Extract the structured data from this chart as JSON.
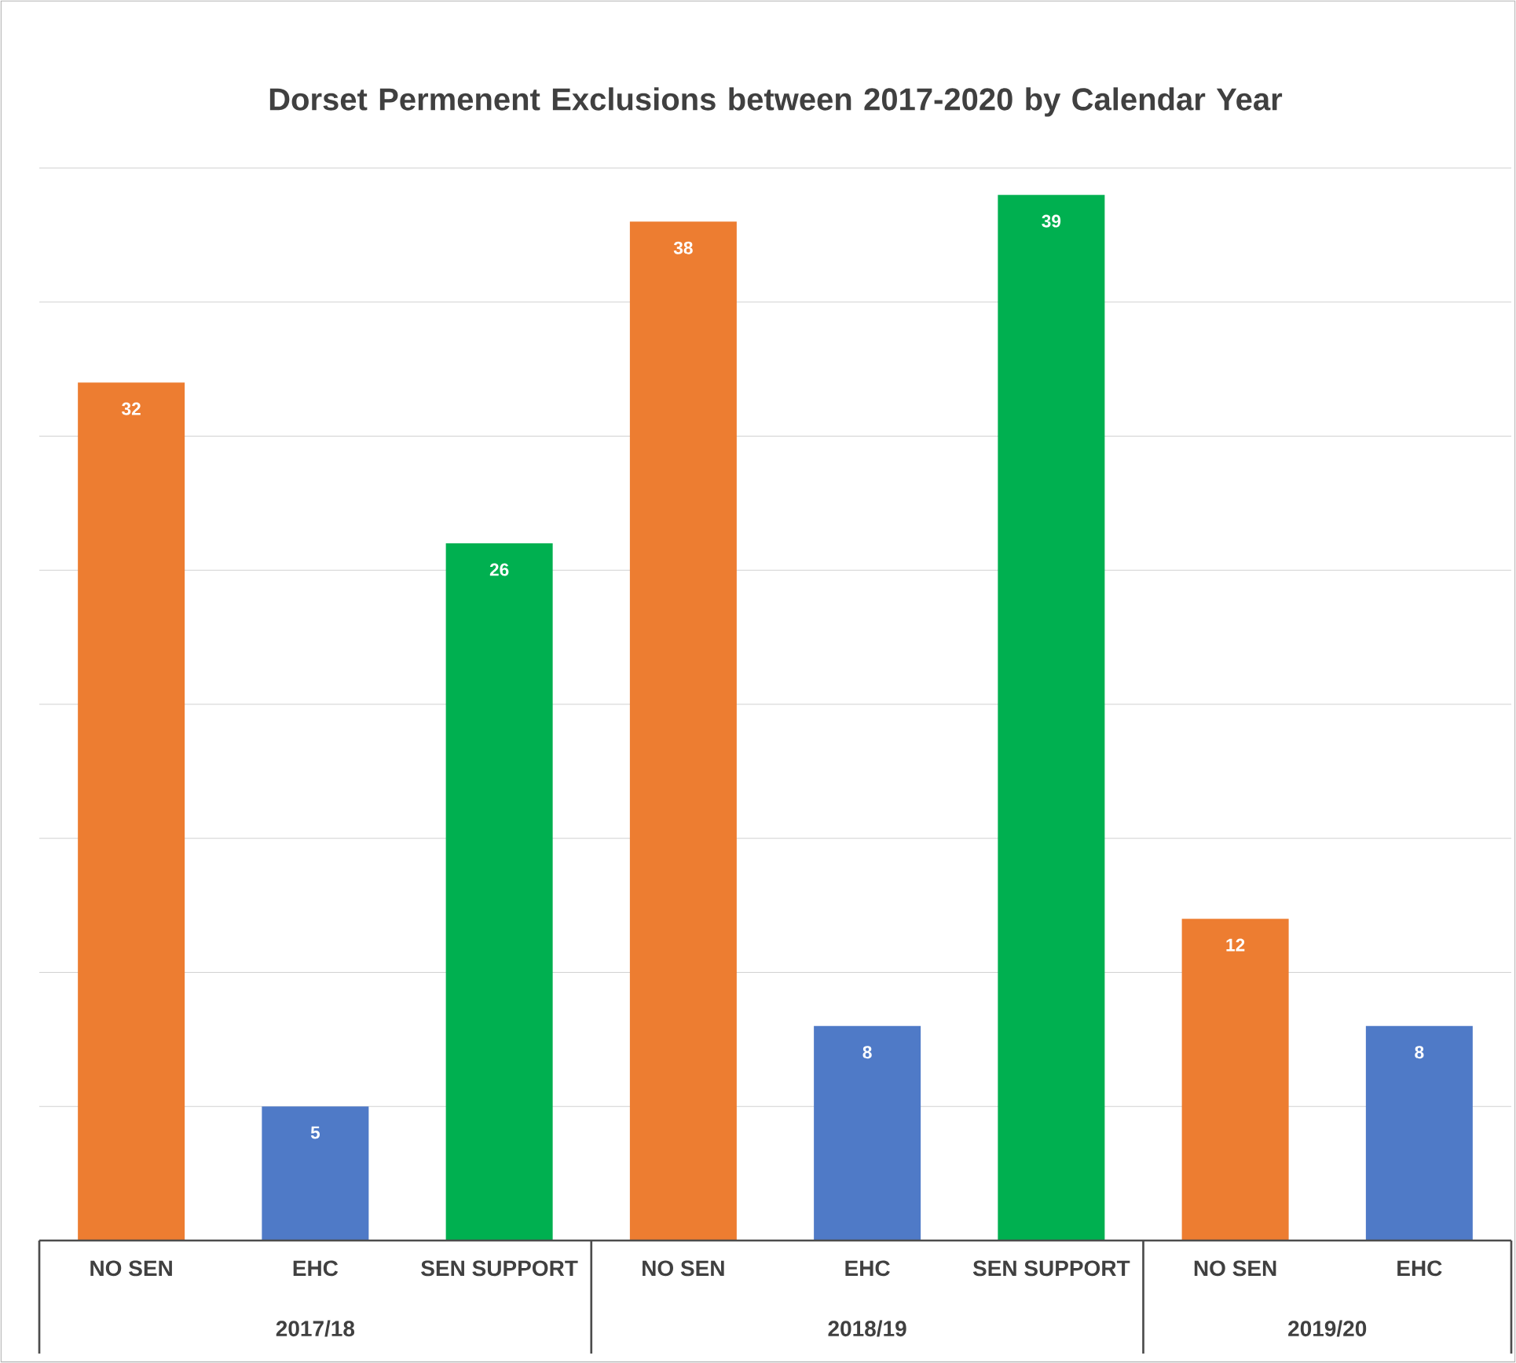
{
  "chart_data": {
    "type": "bar",
    "title": "Dorset Permenent Exclusions between 2017-2020 by Calendar Year",
    "categories": [
      "NO SEN",
      "EHC",
      "SEN SUPPORT",
      "NO SEN",
      "EHC",
      "SEN SUPPORT",
      "NO SEN",
      "EHC"
    ],
    "values": [
      32,
      5,
      26,
      38,
      8,
      39,
      12,
      8
    ],
    "colors": [
      "#ed7d31",
      "#4f7ac7",
      "#00b050",
      "#ed7d31",
      "#4f7ac7",
      "#00b050",
      "#ed7d31",
      "#4f7ac7"
    ],
    "annotations": [
      "2017/18",
      "2018/19",
      "2019/20"
    ],
    "ylim": [
      0,
      40
    ],
    "yticks": [
      {
        "value": 0,
        "label": null
      },
      {
        "value": 5,
        "label": null
      },
      {
        "value": 10,
        "label": null
      },
      {
        "value": 15,
        "label": null
      },
      {
        "value": 20,
        "label": null
      },
      {
        "value": 25,
        "label": null
      },
      {
        "value": 30,
        "label": null
      },
      {
        "value": 35,
        "label": null
      },
      {
        "value": 40,
        "label": null
      }
    ],
    "tick_labels": "x",
    "grid": "y",
    "data_labels": true
  }
}
